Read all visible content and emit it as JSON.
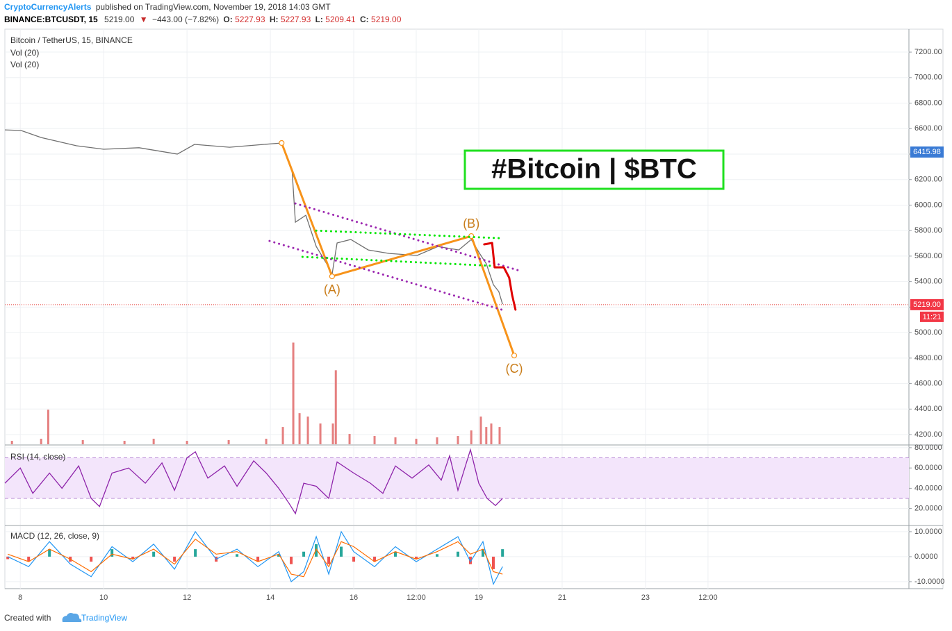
{
  "header": {
    "author": "CryptoCurrencyAlerts",
    "published": "published on TradingView.com, November 19, 2018 14:03 GMT",
    "symbol": "BINANCE:BTCUSDT, 15",
    "last": "5219.00",
    "arrow": "▼",
    "change": "−443.00 (−7.82%)",
    "open_label": "O:",
    "open": "5227.93",
    "high_label": "H:",
    "high": "5227.93",
    "low_label": "L:",
    "low": "5209.41",
    "close_label": "C:",
    "close": "5219.00"
  },
  "footer": {
    "created": "Created with",
    "brand": "TradingView"
  },
  "chart_data": [
    {
      "type": "line",
      "title": "Bitcoin / TetherUS, 15, BINANCE",
      "indicators": [
        "Vol (20)",
        "Vol (20)"
      ],
      "color": "#6f6f6f",
      "x": [
        7.63,
        8.02,
        8.5,
        9.35,
        10.0,
        10.85,
        11.77,
        12.18,
        13.02,
        13.85,
        14.27,
        14.52,
        14.6,
        14.85,
        15.1,
        15.35,
        15.48,
        15.6,
        15.93,
        16.35,
        16.85,
        17.52,
        18.02,
        18.52,
        18.82,
        19.02,
        19.18,
        19.35,
        19.48,
        19.57
      ],
      "values": [
        6590,
        6585,
        6530,
        6465,
        6438,
        6450,
        6400,
        6476,
        6454,
        6476,
        6487,
        6274,
        5866,
        5920,
        5675,
        5540,
        5458,
        5703,
        5730,
        5648,
        5621,
        5605,
        5675,
        5648,
        5730,
        5621,
        5540,
        5376,
        5322,
        5223
      ],
      "xlim": [
        7.63,
        29.32
      ],
      "xticks": [
        8,
        10,
        12,
        14,
        16,
        {
          "value": 17.5,
          "label": "12:00"
        },
        19,
        21,
        23,
        {
          "value": 24.5,
          "label": "12:00"
        }
      ],
      "ylim": [
        4124,
        7380
      ],
      "yticks": [
        {
          "value": 4200,
          "label": "4200.00"
        },
        {
          "value": 4400,
          "label": "4400.00"
        },
        {
          "value": 4600,
          "label": "4600.00"
        },
        {
          "value": 4800,
          "label": "4800.00"
        },
        {
          "value": 5000,
          "label": "5000.00"
        },
        {
          "value": 5200,
          "label": "5200.00"
        },
        {
          "value": 5400,
          "label": "5400.00"
        },
        {
          "value": 5600,
          "label": "5600.00"
        },
        {
          "value": 5800,
          "label": "5800.00"
        },
        {
          "value": 6000,
          "label": "6000.00"
        },
        {
          "value": 6200,
          "label": "6200.00"
        },
        {
          "value": 6400,
          "label": "6400.00"
        },
        {
          "value": 6600,
          "label": "6600.00"
        },
        {
          "value": 6800,
          "label": "6800.00"
        },
        {
          "value": 7000,
          "label": "7000.00"
        },
        {
          "value": 7200,
          "label": "7200.00"
        }
      ],
      "grid": true,
      "last_price": {
        "value": 5219,
        "label": "5219.00"
      },
      "countdown": "11:21",
      "marker_price": {
        "value": 6415.98,
        "label": "6415.98"
      },
      "annotation": "#Bitcoin | $BTC",
      "drawings": {
        "wave": {
          "x": [
            14.27,
            15.48,
            18.82,
            19.85
          ],
          "y": [
            6487,
            5441,
            5757,
            4820
          ],
          "color": "#f7931a",
          "labels": [
            null,
            "(A)",
            "(B)",
            "(C)"
          ]
        },
        "upper_channel": {
          "x": [
            14.6,
            19.98
          ],
          "y": [
            6013,
            5485
          ],
          "color": "#9c27b0"
        },
        "lower_channel": {
          "x": [
            13.98,
            19.6
          ],
          "y": [
            5719,
            5175
          ],
          "color": "#9c27b0"
        },
        "upper_flag": {
          "x": [
            15.1,
            19.55
          ],
          "y": [
            5800,
            5740
          ],
          "color": "#00e600"
        },
        "lower_flag": {
          "x": [
            14.77,
            19.38
          ],
          "y": [
            5594,
            5523
          ],
          "color": "#00e600"
        },
        "projection": {
          "x": [
            19.13,
            19.32,
            19.38,
            19.6,
            19.73,
            19.8,
            19.88
          ],
          "y": [
            5692,
            5703,
            5512,
            5512,
            5430,
            5294,
            5180
          ],
          "color": "#e00000"
        }
      }
    },
    {
      "type": "bar",
      "color": "#e57f7f",
      "x": [
        7.8,
        8.5,
        8.67,
        9.5,
        10.5,
        11.2,
        12.0,
        13.0,
        13.9,
        14.3,
        14.55,
        14.7,
        14.9,
        15.2,
        15.5,
        15.57,
        15.9,
        16.5,
        17.0,
        17.5,
        18.0,
        18.5,
        18.82,
        19.05,
        19.18,
        19.3,
        19.5
      ],
      "values": [
        5,
        8,
        50,
        6,
        5,
        8,
        5,
        6,
        8,
        25,
        147,
        45,
        40,
        30,
        30,
        107,
        15,
        12,
        10,
        8,
        10,
        12,
        20,
        40,
        25,
        30,
        25
      ],
      "ylim": [
        0,
        600
      ]
    },
    {
      "type": "line",
      "title": "RSI (14, close)",
      "color": "#8e24aa",
      "band": [
        30,
        70
      ],
      "band_color": "#f3e5fb",
      "x": [
        7.63,
        8.0,
        8.3,
        8.7,
        9.0,
        9.4,
        9.7,
        9.9,
        10.2,
        10.6,
        11.0,
        11.4,
        11.7,
        12.0,
        12.2,
        12.5,
        12.9,
        13.2,
        13.6,
        13.9,
        14.2,
        14.45,
        14.6,
        14.8,
        15.1,
        15.4,
        15.6,
        16.0,
        16.4,
        16.7,
        17.0,
        17.4,
        17.8,
        18.1,
        18.3,
        18.5,
        18.8,
        19.0,
        19.2,
        19.4,
        19.57
      ],
      "values": [
        45,
        60,
        35,
        55,
        40,
        62,
        30,
        22,
        55,
        60,
        45,
        65,
        38,
        70,
        76,
        50,
        62,
        42,
        67,
        55,
        40,
        25,
        15,
        45,
        42,
        30,
        66,
        55,
        45,
        35,
        62,
        50,
        63,
        48,
        72,
        38,
        78,
        45,
        30,
        23,
        30
      ],
      "ylim": [
        4,
        82
      ],
      "yticks": [
        {
          "value": 20,
          "label": "20.0000"
        },
        {
          "value": 40,
          "label": "40.0000"
        },
        {
          "value": 60,
          "label": "60.0000"
        },
        {
          "value": 80,
          "label": "80.0000"
        }
      ]
    },
    {
      "type": "macd",
      "title": "MACD (12, 26, close, 9)",
      "macd_color": "#2196f3",
      "signal_color": "#ff6d00",
      "up_color": "#26a69a",
      "down_color": "#ef5350",
      "x": [
        7.7,
        8.2,
        8.7,
        9.2,
        9.7,
        10.2,
        10.7,
        11.2,
        11.7,
        12.2,
        12.7,
        13.2,
        13.7,
        14.2,
        14.5,
        14.8,
        15.1,
        15.4,
        15.7,
        16.0,
        16.5,
        17.0,
        17.5,
        18.0,
        18.5,
        18.8,
        19.1,
        19.35,
        19.57
      ],
      "macd": [
        0,
        -4,
        6,
        -3,
        -8,
        4,
        -2,
        5,
        -5,
        10,
        -1,
        3,
        -4,
        2,
        -10,
        -6,
        8,
        -7,
        10,
        2,
        -4,
        4,
        -2,
        3,
        8,
        -2,
        6,
        -11,
        -4
      ],
      "signal": [
        1,
        -2,
        3,
        -1,
        -6,
        1,
        -1,
        3,
        -3,
        7,
        1,
        2,
        -2,
        1,
        -7,
        -8,
        3,
        -4,
        6,
        4,
        -2,
        2,
        -1,
        2,
        6,
        1,
        3,
        -6,
        -7
      ],
      "histogram": [
        -1,
        -2,
        3,
        -2,
        -2,
        3,
        -1,
        2,
        -2,
        3,
        -2,
        1,
        -2,
        1,
        -3,
        2,
        5,
        -3,
        4,
        -2,
        -2,
        2,
        -1,
        1,
        2,
        -3,
        3,
        -5,
        3
      ],
      "ylim": [
        -12.8,
        12.2
      ],
      "yticks": [
        {
          "value": -10,
          "label": "-10.0000"
        },
        {
          "value": 0,
          "label": "0.0000"
        },
        {
          "value": 10,
          "label": "10.0000"
        }
      ]
    }
  ]
}
